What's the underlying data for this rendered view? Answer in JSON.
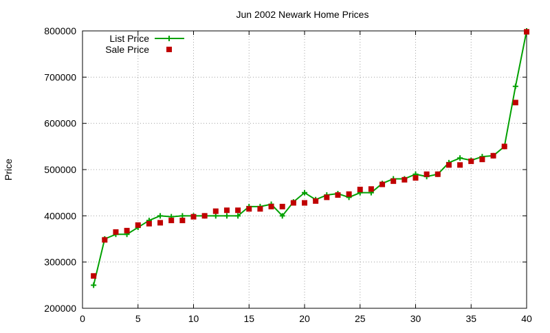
{
  "chart_data": {
    "type": "line",
    "title": "Jun 2002 Newark Home Prices",
    "xlabel": "",
    "ylabel": "Price",
    "xlim": [
      0,
      40
    ],
    "ylim": [
      200000,
      800000
    ],
    "x_ticks": [
      "0",
      "5",
      "10",
      "15",
      "20",
      "25",
      "30",
      "35",
      "40"
    ],
    "y_ticks": [
      "200000",
      "300000",
      "400000",
      "500000",
      "600000",
      "700000",
      "800000"
    ],
    "grid": true,
    "legend_position": "top-left",
    "x": [
      1,
      2,
      3,
      4,
      5,
      6,
      7,
      8,
      9,
      10,
      11,
      12,
      13,
      14,
      15,
      16,
      17,
      18,
      19,
      20,
      21,
      22,
      23,
      24,
      25,
      26,
      27,
      28,
      29,
      30,
      31,
      32,
      33,
      34,
      35,
      36,
      37,
      38,
      39,
      40
    ],
    "series": [
      {
        "name": "List Price",
        "style": "linespoints",
        "color": "#00a000",
        "values": [
          250000,
          350000,
          360000,
          360000,
          375000,
          390000,
          400000,
          398000,
          400000,
          400000,
          400000,
          400000,
          400000,
          400000,
          420000,
          420000,
          425000,
          400000,
          430000,
          450000,
          435000,
          445000,
          448000,
          440000,
          450000,
          450000,
          470000,
          480000,
          480000,
          490000,
          485000,
          490000,
          515000,
          525000,
          520000,
          528000,
          530000,
          550000,
          680000,
          800000
        ]
      },
      {
        "name": "Sale Price",
        "style": "points",
        "color": "#c00000",
        "values": [
          270000,
          348000,
          365000,
          368000,
          380000,
          383000,
          385000,
          390000,
          390000,
          398000,
          400000,
          410000,
          412000,
          412000,
          415000,
          415000,
          420000,
          420000,
          428000,
          428000,
          432000,
          440000,
          445000,
          447000,
          457000,
          458000,
          468000,
          475000,
          478000,
          482000,
          490000,
          490000,
          510000,
          510000,
          518000,
          522000,
          530000,
          550000,
          645000,
          798000
        ]
      }
    ]
  }
}
